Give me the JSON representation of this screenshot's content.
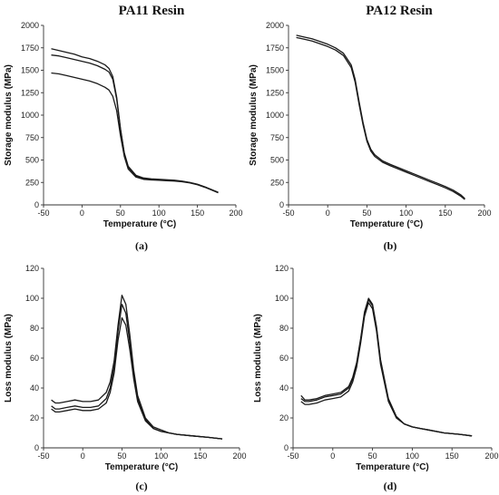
{
  "column_titles": [
    "PA11 Resin",
    "PA12 Resin"
  ],
  "chart_data": [
    {
      "type": "line",
      "panel": "(a)",
      "title": "PA11 Resin",
      "xlabel": "Temperature (°C)",
      "ylabel": "Storage modulus (MPa)",
      "xlim": [
        -50,
        200
      ],
      "ylim": [
        0,
        2000
      ],
      "xticks": [
        -50,
        0,
        50,
        100,
        150,
        200
      ],
      "yticks": [
        0,
        250,
        500,
        750,
        1000,
        1250,
        1500,
        1750,
        2000
      ],
      "series": [
        {
          "x": [
            -40,
            -30,
            -20,
            -10,
            0,
            10,
            20,
            30,
            35,
            40,
            45,
            50,
            55,
            60,
            70,
            80,
            90,
            100,
            110,
            120,
            130,
            140,
            150,
            160,
            170,
            177
          ],
          "y": [
            1740,
            1720,
            1700,
            1680,
            1650,
            1630,
            1600,
            1560,
            1520,
            1430,
            1200,
            850,
            580,
            430,
            330,
            300,
            290,
            285,
            280,
            275,
            265,
            250,
            230,
            200,
            165,
            140
          ]
        },
        {
          "x": [
            -40,
            -30,
            -20,
            -10,
            0,
            10,
            20,
            30,
            35,
            40,
            45,
            50,
            55,
            60,
            70,
            80,
            90,
            100,
            110,
            120,
            130,
            140,
            150,
            160,
            170,
            177
          ],
          "y": [
            1670,
            1660,
            1640,
            1620,
            1600,
            1580,
            1550,
            1510,
            1480,
            1400,
            1180,
            840,
            570,
            420,
            320,
            290,
            282,
            278,
            275,
            270,
            262,
            248,
            228,
            198,
            163,
            138
          ]
        },
        {
          "x": [
            -40,
            -30,
            -20,
            -10,
            0,
            10,
            20,
            30,
            35,
            40,
            45,
            50,
            55,
            60,
            70,
            80,
            90,
            100,
            110,
            120,
            130,
            140,
            150,
            160,
            170,
            177
          ],
          "y": [
            1470,
            1460,
            1440,
            1420,
            1400,
            1380,
            1350,
            1310,
            1280,
            1210,
            1050,
            770,
            540,
            400,
            310,
            285,
            278,
            274,
            270,
            266,
            258,
            245,
            225,
            195,
            160,
            135
          ]
        }
      ]
    },
    {
      "type": "line",
      "panel": "(b)",
      "title": "PA12 Resin",
      "xlabel": "Temperature (°C)",
      "ylabel": "Storage modulus (MPa)",
      "xlim": [
        -50,
        200
      ],
      "ylim": [
        0,
        2000
      ],
      "xticks": [
        -50,
        0,
        50,
        100,
        150,
        200
      ],
      "yticks": [
        0,
        250,
        500,
        750,
        1000,
        1250,
        1500,
        1750,
        2000
      ],
      "series": [
        {
          "x": [
            -40,
            -30,
            -20,
            -10,
            0,
            10,
            20,
            30,
            35,
            40,
            45,
            50,
            55,
            60,
            70,
            80,
            90,
            100,
            110,
            120,
            130,
            140,
            150,
            160,
            170,
            175
          ],
          "y": [
            1890,
            1870,
            1850,
            1820,
            1790,
            1750,
            1690,
            1560,
            1400,
            1150,
            920,
            730,
            620,
            560,
            490,
            450,
            415,
            380,
            345,
            310,
            275,
            240,
            205,
            165,
            110,
            70
          ]
        },
        {
          "x": [
            -40,
            -30,
            -20,
            -10,
            0,
            10,
            20,
            30,
            35,
            40,
            45,
            50,
            55,
            60,
            70,
            80,
            90,
            100,
            110,
            120,
            130,
            140,
            150,
            160,
            170,
            175
          ],
          "y": [
            1865,
            1845,
            1825,
            1795,
            1765,
            1725,
            1665,
            1530,
            1370,
            1120,
            895,
            710,
            600,
            540,
            475,
            435,
            400,
            365,
            330,
            295,
            260,
            225,
            190,
            150,
            95,
            60
          ]
        }
      ]
    },
    {
      "type": "line",
      "panel": "(c)",
      "xlabel": "Temperature (°C)",
      "ylabel": "Loss modulus (MPa)",
      "xlim": [
        -50,
        200
      ],
      "ylim": [
        0,
        120
      ],
      "xticks": [
        -50,
        0,
        50,
        100,
        150,
        200
      ],
      "yticks": [
        0,
        20,
        40,
        60,
        80,
        100,
        120
      ],
      "series": [
        {
          "x": [
            -40,
            -35,
            -30,
            -20,
            -10,
            0,
            10,
            20,
            30,
            35,
            40,
            45,
            50,
            55,
            60,
            65,
            70,
            80,
            90,
            100,
            110,
            120,
            140,
            160,
            178
          ],
          "y": [
            32,
            30,
            30,
            31,
            32,
            31,
            31,
            32,
            37,
            44,
            58,
            82,
            102,
            96,
            76,
            52,
            35,
            20,
            14,
            12,
            10,
            9,
            8,
            7,
            6
          ]
        },
        {
          "x": [
            -40,
            -35,
            -30,
            -20,
            -10,
            0,
            10,
            20,
            30,
            35,
            40,
            45,
            50,
            55,
            60,
            65,
            70,
            80,
            90,
            100,
            110,
            120,
            140,
            160,
            178
          ],
          "y": [
            28,
            26,
            26,
            27,
            28,
            27,
            27,
            28,
            33,
            40,
            54,
            78,
            96,
            90,
            71,
            49,
            33,
            19,
            13,
            11,
            10,
            9,
            8,
            7,
            6
          ]
        },
        {
          "x": [
            -40,
            -35,
            -30,
            -20,
            -10,
            0,
            10,
            20,
            30,
            35,
            40,
            45,
            50,
            55,
            60,
            65,
            70,
            80,
            90,
            100,
            110,
            120,
            140,
            160,
            178
          ],
          "y": [
            26,
            24,
            24,
            25,
            26,
            25,
            25,
            26,
            30,
            37,
            50,
            72,
            87,
            82,
            66,
            46,
            31,
            18,
            13,
            11,
            10,
            9,
            8,
            7,
            6
          ]
        }
      ]
    },
    {
      "type": "line",
      "panel": "(d)",
      "xlabel": "Temperature (°C)",
      "ylabel": "Loss modulus (MPa)",
      "xlim": [
        -50,
        200
      ],
      "ylim": [
        0,
        120
      ],
      "xticks": [
        -50,
        0,
        50,
        100,
        150,
        200
      ],
      "yticks": [
        0,
        20,
        40,
        60,
        80,
        100,
        120
      ],
      "series": [
        {
          "x": [
            -40,
            -35,
            -30,
            -20,
            -10,
            0,
            10,
            20,
            25,
            30,
            35,
            40,
            45,
            50,
            55,
            60,
            70,
            80,
            90,
            100,
            110,
            120,
            140,
            160,
            175
          ],
          "y": [
            33,
            31,
            31,
            32,
            34,
            35,
            36,
            40,
            46,
            56,
            72,
            90,
            99,
            95,
            80,
            58,
            32,
            20,
            16,
            14,
            13,
            12,
            10,
            9,
            8
          ]
        },
        {
          "x": [
            -40,
            -35,
            -30,
            -20,
            -10,
            0,
            10,
            20,
            25,
            30,
            35,
            40,
            45,
            50,
            55,
            60,
            70,
            80,
            90,
            100,
            110,
            120,
            140,
            160,
            175
          ],
          "y": [
            31,
            29,
            29,
            30,
            32,
            33,
            34,
            38,
            44,
            54,
            70,
            88,
            97,
            93,
            78,
            56,
            31,
            20,
            16,
            14,
            13,
            12,
            10,
            9,
            8
          ]
        },
        {
          "x": [
            -40,
            -35,
            -30,
            -20,
            -10,
            0,
            10,
            20,
            25,
            30,
            35,
            40,
            45,
            50,
            55,
            60,
            70,
            80,
            90,
            100,
            110,
            120,
            140,
            160,
            175
          ],
          "y": [
            35,
            32,
            32,
            33,
            35,
            36,
            37,
            41,
            47,
            57,
            73,
            91,
            100,
            96,
            81,
            59,
            33,
            21,
            16,
            14,
            13,
            12,
            10,
            9,
            8
          ]
        }
      ]
    }
  ]
}
